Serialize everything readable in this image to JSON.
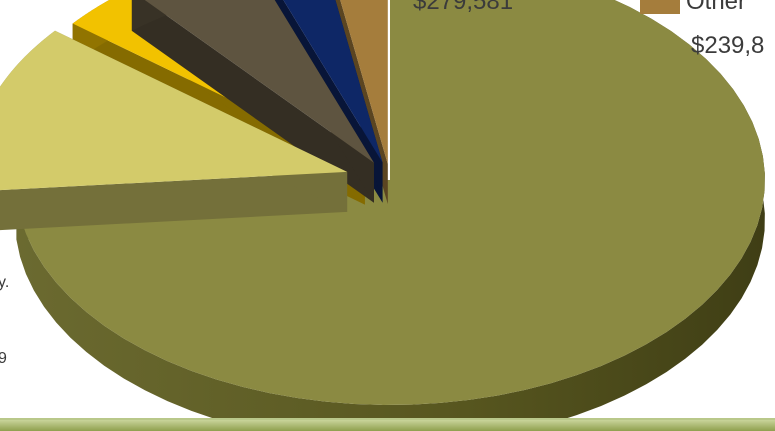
{
  "side_text": {
    "line1": "y.",
    "line2": "9"
  },
  "label_top_center": "$279,581",
  "legend": {
    "label": "Other",
    "value": "$239,8",
    "color": "#a57d3c"
  },
  "chart_data": {
    "type": "pie",
    "style": "3d-exploded",
    "slices": [
      {
        "value": 72.5,
        "color": "#8b8a42"
      },
      {
        "value": 12.0,
        "color": "#d3cb6a"
      },
      {
        "value": 3.0,
        "color": "#f2c200"
      },
      {
        "value": 5.5,
        "color": "#5e5440"
      },
      {
        "value": 2.8,
        "color": "#0e2766"
      },
      {
        "value": 2.7,
        "color": "#a57d3c"
      }
    ]
  }
}
